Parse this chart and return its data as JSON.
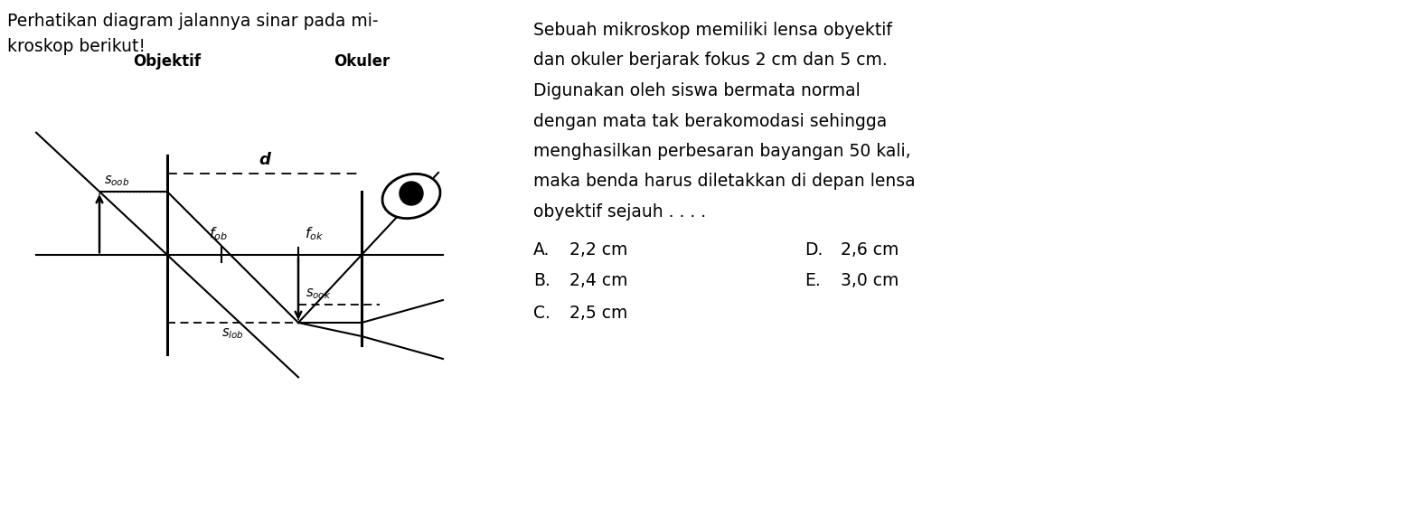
{
  "title_line1": "Perhatikan diagram jalannya sinar pada mi-",
  "title_line2": "kroskop berikut!",
  "label_objektif": "Objektif",
  "label_okuler": "Okuler",
  "label_d": "d",
  "label_fob": "f",
  "label_fok": "f",
  "label_soob": "s",
  "label_slob": "s",
  "label_sook": "s",
  "problem_lines": [
    "Sebuah mikroskop memiliki lensa obyektif",
    "dan okuler berjarak fokus 2 cm dan 5 cm.",
    "Digunakan oleh siswa bermata normal",
    "dengan mata tak berakomodasi sehingga",
    "menghasilkan perbesaran bayangan 50 kali,",
    "maka benda harus diletakkan di depan lensa",
    "obyektif sejauh . . . ."
  ],
  "options": [
    [
      "A.",
      "2,2 cm",
      "D.",
      "2,6 cm"
    ],
    [
      "B.",
      "2,4 cm",
      "E.",
      "3,0 cm"
    ],
    [
      "C.",
      "2,5 cm",
      "",
      ""
    ]
  ],
  "bg_color": "#ffffff"
}
